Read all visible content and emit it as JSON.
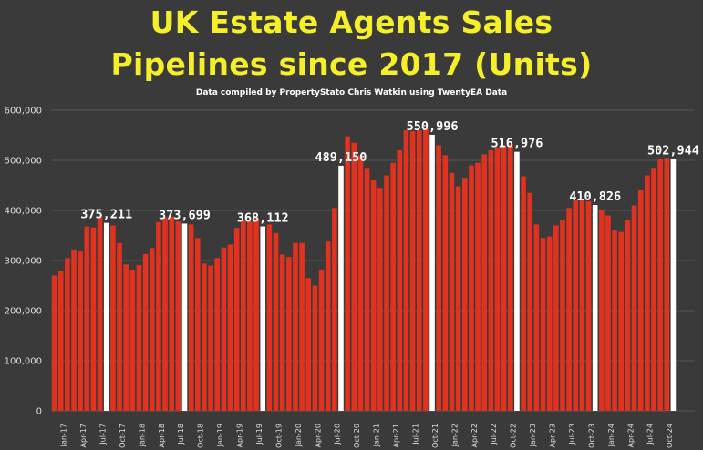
{
  "title_line1": "UK Estate Agents Sales",
  "title_line2": "Pipelines since 2017 (Units)",
  "subtitle": "Data compiled by PropertyStato Chris Watkin using TwentyEA Data",
  "colors": {
    "background": "#3a3a3a",
    "bar": "#e0321f",
    "highlight_bar": "#ffffff",
    "title": "#f5ef2a",
    "grid": "#555555"
  },
  "chart_data": {
    "type": "bar",
    "ylim": [
      0,
      600000
    ],
    "yticks": [
      0,
      100000,
      200000,
      300000,
      400000,
      500000,
      600000
    ],
    "ytick_labels": [
      "0",
      "100,000",
      "200,000",
      "300,000",
      "400,000",
      "500,000",
      "600,000"
    ],
    "grid": true,
    "xtick_labels": [
      "Jan-17",
      "Apr-17",
      "Jul-17",
      "Oct-17",
      "Jan-18",
      "Apr-18",
      "Jul-18",
      "Oct-18",
      "Jan-19",
      "Apr-19",
      "Jul-19",
      "Oct-19",
      "Jan-20",
      "Apr-20",
      "Jul-20",
      "Oct-20",
      "Jan-21",
      "Apr-21",
      "Jul-21",
      "Oct-21",
      "Jan-22",
      "Apr-22",
      "Jul-22",
      "Oct-22",
      "Jan-23",
      "Apr-23",
      "Jul-23",
      "Oct-23",
      "Jan-24",
      "Apr-24",
      "Jul-24",
      "Oct-24"
    ],
    "xtick_every": 3,
    "values": [
      270000,
      280000,
      305000,
      322000,
      318000,
      368000,
      366000,
      388000,
      375211,
      370000,
      335000,
      292000,
      282000,
      291000,
      313000,
      325000,
      377000,
      386000,
      388000,
      378000,
      373699,
      372000,
      345000,
      294000,
      290000,
      305000,
      326000,
      332000,
      365000,
      380000,
      378000,
      385000,
      368112,
      372000,
      355000,
      312000,
      307000,
      335000,
      335000,
      265000,
      250000,
      282000,
      338000,
      405000,
      489150,
      548000,
      535000,
      510000,
      485000,
      460000,
      445000,
      470000,
      495000,
      520000,
      560000,
      558000,
      560000,
      565000,
      550996,
      530000,
      510000,
      475000,
      448000,
      465000,
      490000,
      495000,
      512000,
      520000,
      526000,
      530000,
      532000,
      516976,
      468000,
      435000,
      372000,
      345000,
      348000,
      370000,
      380000,
      405000,
      420000,
      422000,
      418000,
      410826,
      402000,
      390000,
      360000,
      357000,
      380000,
      410000,
      440000,
      470000,
      485000,
      502000,
      505000,
      502944
    ],
    "highlighted": [
      {
        "index": 8,
        "label": "375,211"
      },
      {
        "index": 20,
        "label": "373,699"
      },
      {
        "index": 32,
        "label": "368,112"
      },
      {
        "index": 44,
        "label": "489,150"
      },
      {
        "index": 58,
        "label": "550,996"
      },
      {
        "index": 71,
        "label": "516,976"
      },
      {
        "index": 83,
        "label": "410,826"
      },
      {
        "index": 95,
        "label": "502,944"
      }
    ]
  }
}
